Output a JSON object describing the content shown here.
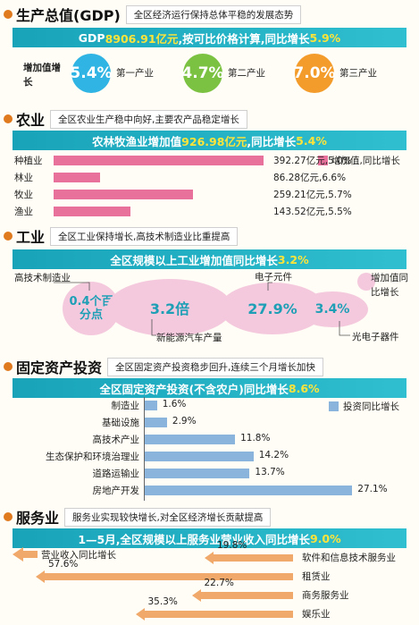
{
  "gdp": {
    "title": "生产总值(GDP)",
    "subtitle": "全区经济运行保持总体平稳的发展态势",
    "banner_pre": "GDP",
    "banner_val": "8906.91亿元",
    "banner_mid": ",按可比价格计算,同比增长",
    "banner_pct": "5.9%",
    "legend": "增加值增长",
    "items": [
      {
        "value": "5.4%",
        "label": "第一产业",
        "color": "#2fb4e3"
      },
      {
        "value": "4.7%",
        "label": "第二产业",
        "color": "#7cc242"
      },
      {
        "value": "7.0%",
        "label": "第三产业",
        "color": "#f39c2b"
      }
    ]
  },
  "agri": {
    "title": "农业",
    "subtitle": "全区农业生产稳中向好,主要农产品稳定增长",
    "banner_pre": "农林牧渔业增加值",
    "banner_val": "926.98亿元",
    "banner_mid": ",同比增长",
    "banner_pct": "5.4%",
    "legend": "增加值,同比增长",
    "color": "#e8719c"
  },
  "industry": {
    "title": "工业",
    "subtitle": "全区工业保持增长,高技术制造业比重提高",
    "banner_pre": "全区规模以上工业增加值同比增长",
    "banner_pct": "3.2%",
    "legend": "增加值同比增长",
    "items": [
      {
        "value": "0.4个百分点",
        "label": "高技术制造业"
      },
      {
        "value": "3.2倍",
        "label": "新能源汽车产量"
      },
      {
        "value": "27.9%",
        "label": "电子元件"
      },
      {
        "value": "3.4%",
        "label": "光电子器件"
      }
    ]
  },
  "invest": {
    "title": "固定资产投资",
    "subtitle": "全区固定资产投资稳步回升,连续三个月增长加快",
    "banner_pre": "全区固定资产投资(不含农户)同比增长",
    "banner_pct": "8.6%",
    "legend": "投资同比增长",
    "color": "#8ab4dc"
  },
  "service": {
    "title": "服务业",
    "subtitle": "服务业实现较快增长,对全区经济增长贡献提高",
    "banner_pre": "1—5月,全区规模以上服务业营业收入同比增长",
    "banner_pct": "9.0%",
    "legend": "营业收入同比增长",
    "color": "#f0a96a"
  },
  "chart_data": [
    {
      "type": "bar",
      "title": "农业",
      "categories": [
        "种植业",
        "林业",
        "牧业",
        "渔业"
      ],
      "series": [
        {
          "name": "增加值,同比增长",
          "values": [
            392.27,
            86.28,
            259.21,
            143.52
          ]
        }
      ],
      "labels": [
        "392.27亿元,5.0%",
        "86.28亿元,6.6%",
        "259.21亿元,5.7%",
        "143.52亿元,5.5%"
      ],
      "growth": [
        5.0,
        6.6,
        5.7,
        5.5
      ],
      "xlim": [
        0,
        400
      ]
    },
    {
      "type": "bar",
      "title": "固定资产投资",
      "categories": [
        "制造业",
        "基础设施",
        "高技术产业",
        "生态保护和环境治理业",
        "道路运输业",
        "房地产开发"
      ],
      "series": [
        {
          "name": "投资同比增长",
          "values": [
            1.6,
            2.9,
            11.8,
            14.2,
            13.7,
            27.1
          ]
        }
      ],
      "labels": [
        "1.6%",
        "2.9%",
        "11.8%",
        "14.2%",
        "13.7%",
        "27.1%"
      ],
      "xlim": [
        0,
        28
      ]
    },
    {
      "type": "bar",
      "title": "服务业",
      "categories": [
        "软件和信息技术服务业",
        "租赁业",
        "商务服务业",
        "娱乐业"
      ],
      "series": [
        {
          "name": "营业收入同比增长",
          "values": [
            19.8,
            57.6,
            22.7,
            35.3
          ]
        }
      ],
      "labels": [
        "19.8%",
        "57.6%",
        "22.7%",
        "35.3%"
      ],
      "xlim": [
        0,
        60
      ]
    }
  ]
}
